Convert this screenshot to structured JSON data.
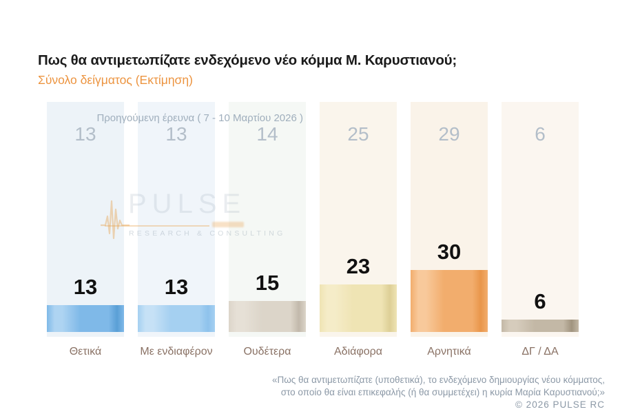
{
  "header": {
    "title": "Πως θα αντιμετωπίζατε ενδεχόμενο νέο κόμμα Μ. Καρυστιανού;",
    "subtitle": "Σύνολο δείγματος  (Εκτίμηση)"
  },
  "previous_survey": {
    "label": "Προηγούμενη έρευνα ( 7 - 10 Μαρτίου 2026 )"
  },
  "chart_data": {
    "type": "bar",
    "title": "Πως θα αντιμετωπίζατε ενδεχόμενο νέο κόμμα Μ. Καρυστιανού;",
    "subtitle": "Σύνολο δείγματος (Εκτίμηση)",
    "categories": [
      "Θετικά",
      "Με ενδιαφέρον",
      "Ουδέτερα",
      "Αδιάφορα",
      "Αρνητικά",
      "ΔΓ / ΔΑ"
    ],
    "series": [
      {
        "name": "Εκτίμηση",
        "values": [
          13,
          13,
          15,
          23,
          30,
          6
        ]
      },
      {
        "name": "Προηγούμενη έρευνα ( 7 - 10 Μαρτίου 2026 )",
        "values": [
          13,
          13,
          14,
          25,
          29,
          6
        ]
      }
    ],
    "xlabel": "",
    "ylabel": "",
    "ylim": [
      0,
      100
    ],
    "grid": false,
    "legend_position": "none",
    "value_labels": "above-bars",
    "panel_colors": [
      "#edf3f8",
      "#f0f5fa",
      "#f5f8f5",
      "#faf5ec",
      "#faf3e9",
      "#fbf6f0"
    ],
    "bar_styles": [
      {
        "light": "#aed4f2",
        "mid": "#7fb9e8",
        "dark": "#5a9fd6"
      },
      {
        "light": "#c6e1f6",
        "mid": "#a5d0f1",
        "dark": "#8ec2ec"
      },
      {
        "light": "#e6e0d6",
        "mid": "#dcd5c9",
        "dark": "#c2b9ab"
      },
      {
        "light": "#f5ecc8",
        "mid": "#efe4b4",
        "dark": "#ddcf96"
      },
      {
        "light": "#f8c99b",
        "mid": "#f2ad6d",
        "dark": "#e9964a"
      },
      {
        "light": "#d6ccbc",
        "mid": "#c3b8a6",
        "dark": "#a1947f"
      }
    ]
  },
  "watermark": {
    "brand": "PULSE",
    "tagline": "RESEARCH & CONSULTING"
  },
  "footer": {
    "line1": "«Πως θα αντιμετωπίζατε (υποθετικά), το ενδεχόμενο δημιουργίας νέου κόμματος,",
    "line2": "στο οποίο θα είναι επικεφαλής (ή θα συμμετέχει) η κυρία Μαρία Καρυστιανού;»",
    "copyright": "©  2026  PULSE RC"
  },
  "colors": {
    "accent_orange": "#ec9440",
    "title_text": "#1b1b1b",
    "previous_survey_text": "#9faebc",
    "previous_value_text": "#b3bec9",
    "bar_value_text": "#111111",
    "category_label_text": "#8a7265",
    "footer_text": "#8b98a6",
    "background": "#ffffff"
  }
}
